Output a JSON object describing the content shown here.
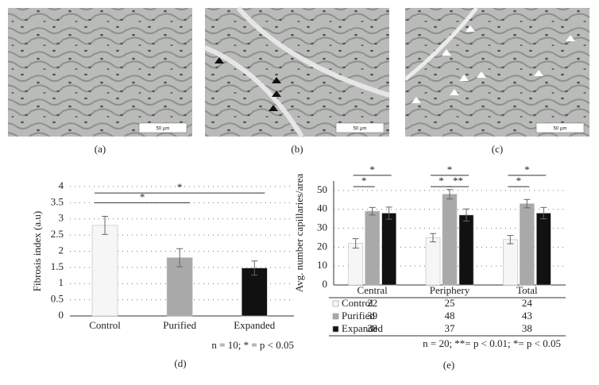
{
  "panels": {
    "labels": [
      "(a)",
      "(b)",
      "(c)",
      "(d)",
      "(e)"
    ],
    "scale_bars": [
      "50 μm",
      "50 μm",
      "50 μm"
    ]
  },
  "chart_data": [
    {
      "type": "bar",
      "ylabel": "Fibrosis index (a.u)",
      "categories": [
        "Control",
        "Purified",
        "Expanded"
      ],
      "values": [
        2.8,
        1.8,
        1.48
      ],
      "errors": [
        0.28,
        0.28,
        0.22
      ],
      "colors": [
        "#f6f6f6",
        "#a9a9a9",
        "#111111"
      ],
      "ylim": [
        0,
        4
      ],
      "yticks": [
        0,
        0.5,
        1,
        1.5,
        2,
        2.5,
        3,
        3.5,
        4
      ],
      "grid": true,
      "annotations": [
        {
          "from": 0,
          "to": 2,
          "y": 3.8,
          "label": "*"
        },
        {
          "from": 0,
          "to": 1,
          "y": 3.5,
          "label": "*"
        }
      ],
      "note": "n = 10; * = p < 0.05"
    },
    {
      "type": "bar",
      "ylabel": "Avg. number capillaries/area",
      "categories": [
        "Central",
        "Periphery",
        "Total"
      ],
      "series": [
        {
          "name": "Control",
          "color": "#f6f6f6",
          "values": [
            22,
            25,
            24
          ],
          "errors": [
            2.5,
            2.2,
            2.2
          ]
        },
        {
          "name": "Purified",
          "color": "#a9a9a9",
          "values": [
            39,
            48,
            43
          ],
          "errors": [
            2,
            2.5,
            2.2
          ]
        },
        {
          "name": "Expanded",
          "color": "#111111",
          "values": [
            38,
            37,
            38
          ],
          "errors": [
            3.2,
            3.2,
            3
          ]
        }
      ],
      "ylim": [
        0,
        55
      ],
      "yticks": [
        0,
        10,
        20,
        30,
        40,
        50
      ],
      "grid": true,
      "annotations": [
        {
          "group": 0,
          "from": 0,
          "to": 1,
          "y": 52,
          "label": "*"
        },
        {
          "group": 0,
          "from": 0,
          "to": 2,
          "y": 58,
          "label": "*"
        },
        {
          "group": 1,
          "from": 0,
          "to": 1,
          "y": 52,
          "label": "*"
        },
        {
          "group": 1,
          "from": 1,
          "to": 2,
          "y": 52,
          "label": "**"
        },
        {
          "group": 1,
          "from": 0,
          "to": 2,
          "y": 58,
          "label": "*"
        },
        {
          "group": 2,
          "from": 0,
          "to": 1,
          "y": 52,
          "label": "*"
        },
        {
          "group": 2,
          "from": 0,
          "to": 2,
          "y": 58,
          "label": "*"
        }
      ],
      "note": "n = 20; **= p < 0.01; *= p < 0.05"
    }
  ]
}
